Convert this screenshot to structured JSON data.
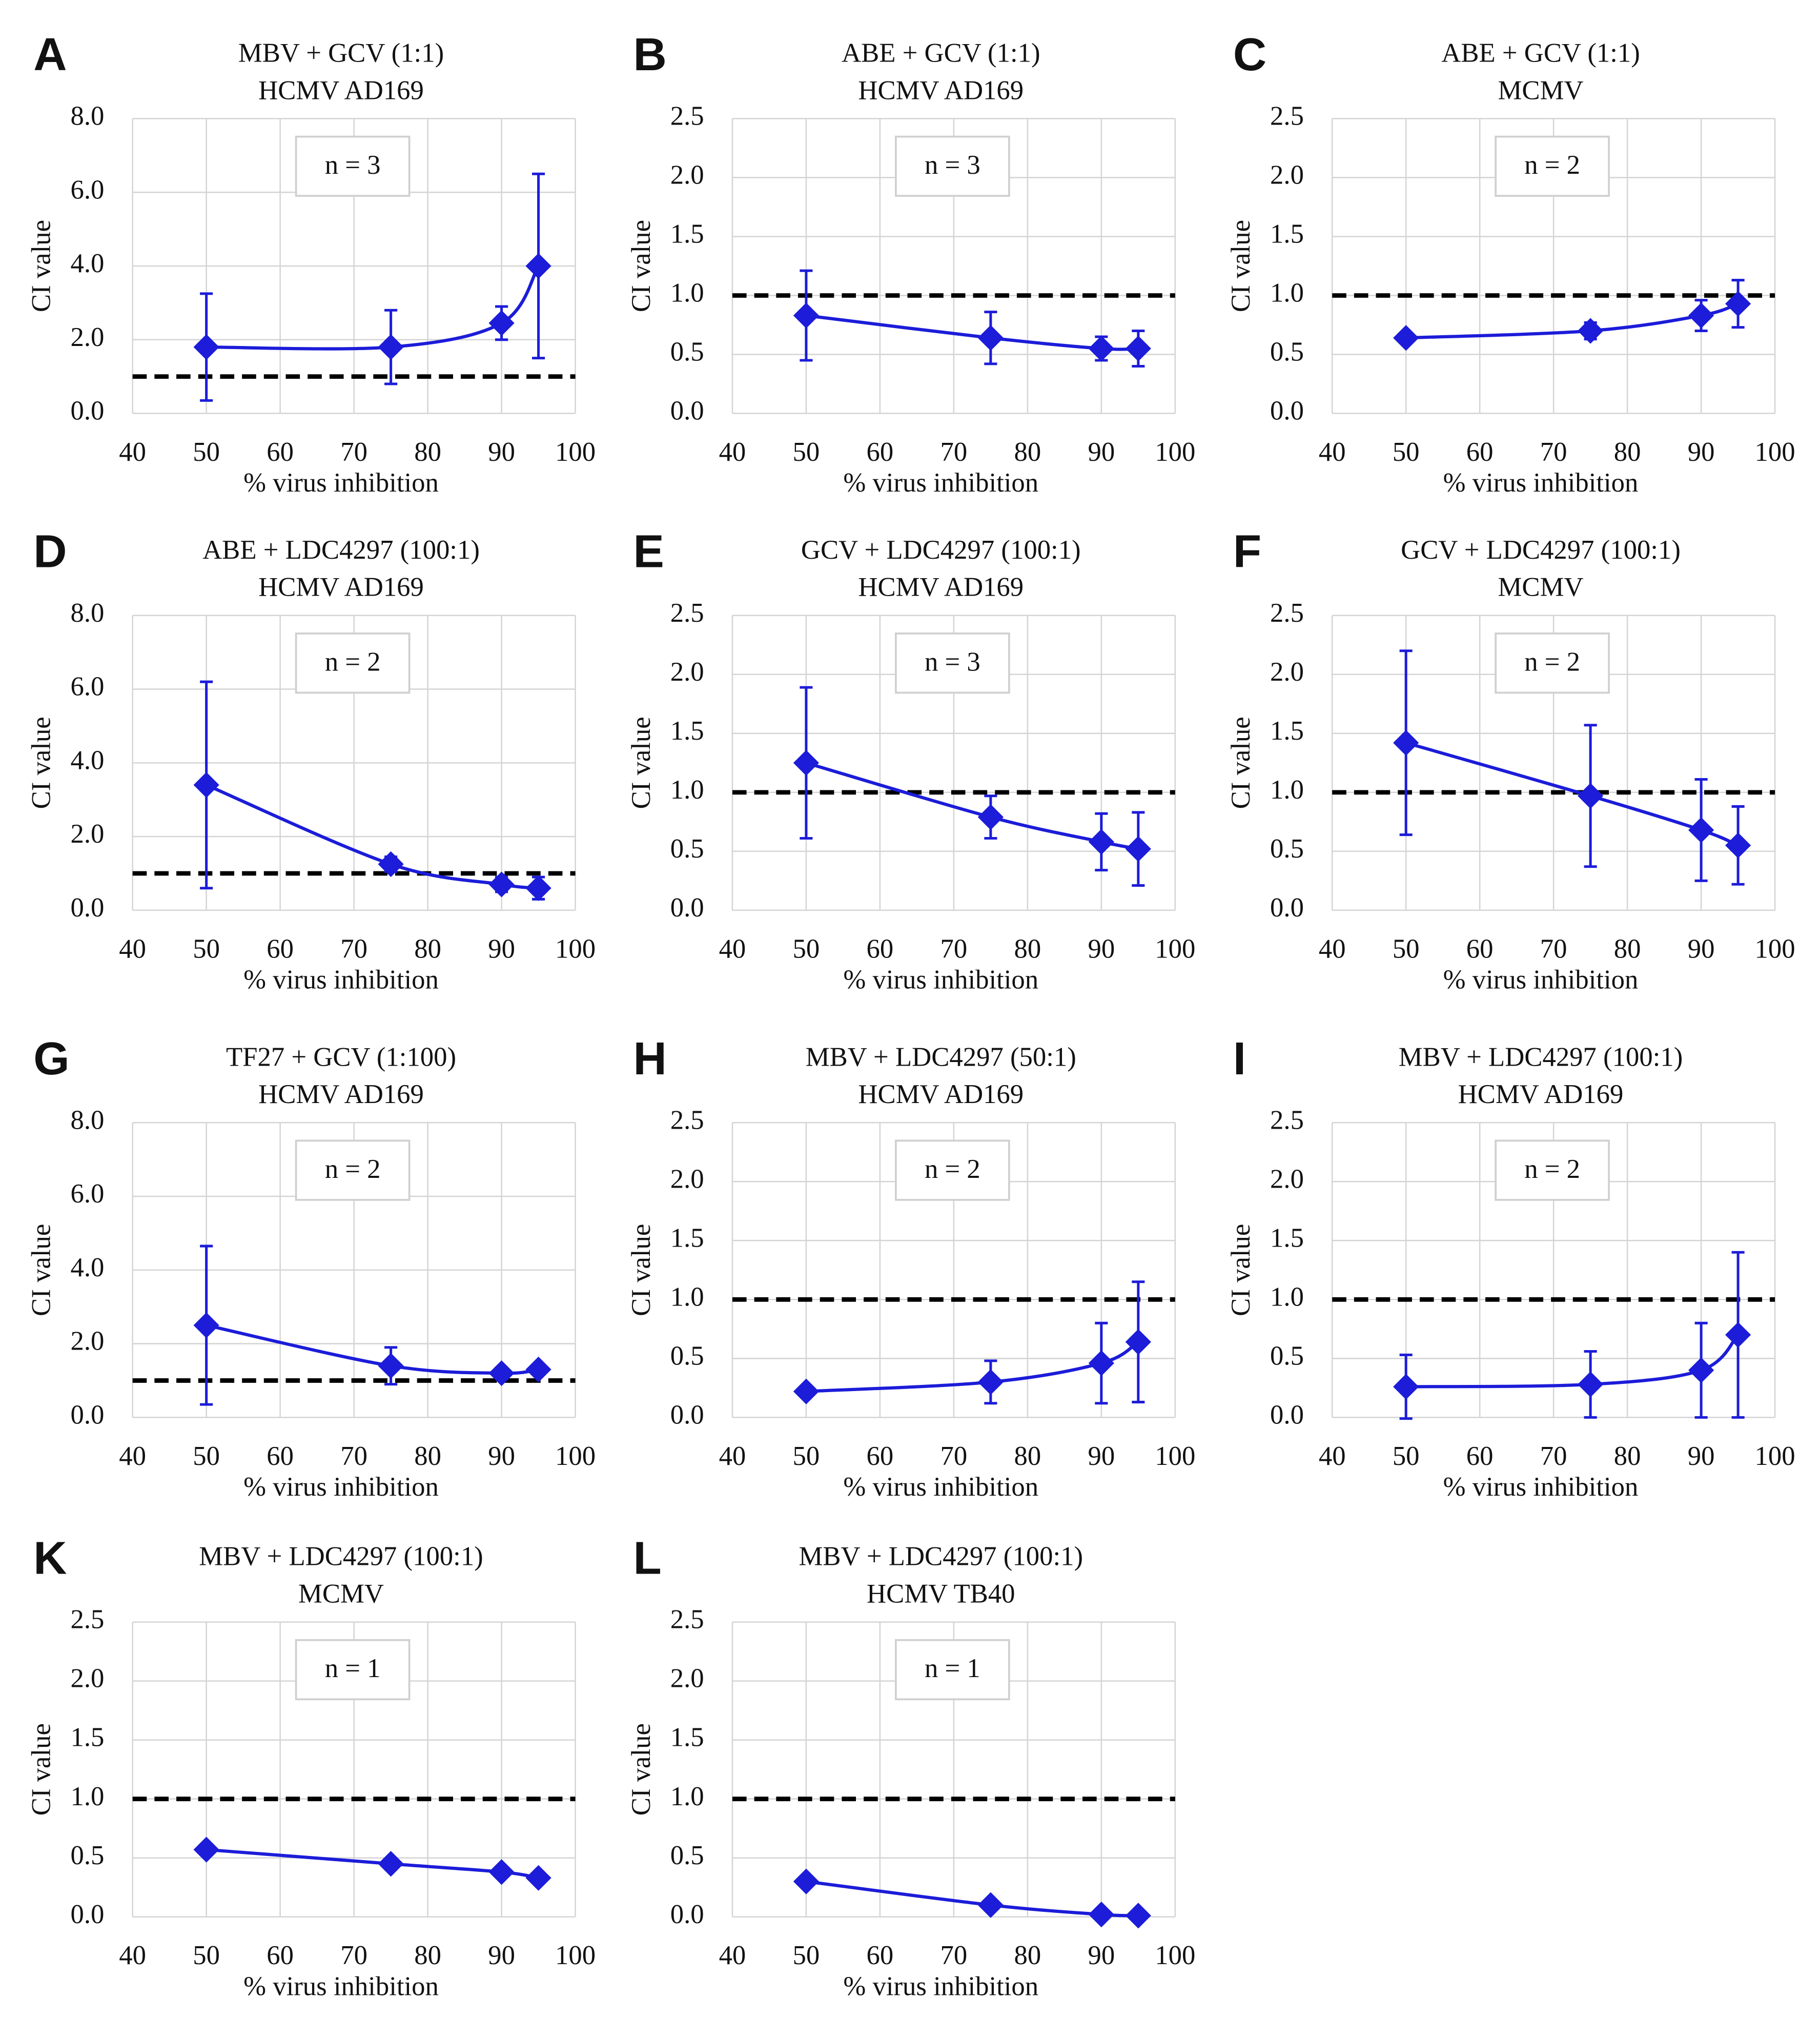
{
  "chart_data": [
    {
      "type": "line",
      "panel": "A",
      "title": "MBV + GCV (1:1)",
      "subtitle": "HCMV AD169",
      "annotation": "n = 3",
      "xlabel": "% virus inhibition",
      "ylabel": "CI value",
      "color": "#1c1cd9",
      "x": [
        50,
        75,
        90,
        95
      ],
      "values": [
        1.8,
        1.8,
        2.45,
        4.0
      ],
      "errors": [
        1.45,
        1.0,
        0.45,
        2.5
      ],
      "reference_line": 1,
      "xlim": [
        40,
        100
      ],
      "xticks": [
        40,
        50,
        60,
        70,
        80,
        90,
        100
      ],
      "ylim": [
        0,
        8
      ],
      "yticks": [
        {
          "value": 0,
          "label": "0.0"
        },
        {
          "value": 2,
          "label": "2.0"
        },
        {
          "value": 4,
          "label": "4.0"
        },
        {
          "value": 6,
          "label": "6.0"
        },
        {
          "value": 8,
          "label": "8.0"
        }
      ],
      "grid": true
    },
    {
      "type": "line",
      "panel": "B",
      "title": "ABE + GCV (1:1)",
      "subtitle": "HCMV AD169",
      "annotation": "n = 3",
      "xlabel": "% virus inhibition",
      "ylabel": "CI value",
      "color": "#1c1cd9",
      "x": [
        50,
        75,
        90,
        95
      ],
      "values": [
        0.83,
        0.64,
        0.55,
        0.55
      ],
      "errors": [
        0.38,
        0.22,
        0.1,
        0.15
      ],
      "reference_line": 1,
      "xlim": [
        40,
        100
      ],
      "xticks": [
        40,
        50,
        60,
        70,
        80,
        90,
        100
      ],
      "ylim": [
        0,
        2.5
      ],
      "yticks": [
        {
          "value": 0,
          "label": "0.0"
        },
        0.5,
        {
          "value": 1,
          "label": "1.0"
        },
        1.5,
        {
          "value": 2,
          "label": "2.0"
        },
        2.5
      ],
      "grid": true
    },
    {
      "type": "line",
      "panel": "C",
      "title": "ABE + GCV (1:1)",
      "subtitle": "MCMV",
      "annotation": "n = 2",
      "xlabel": "% virus inhibition",
      "ylabel": "CI value",
      "color": "#1c1cd9",
      "x": [
        50,
        75,
        90,
        95
      ],
      "values": [
        0.64,
        0.7,
        0.83,
        0.93
      ],
      "errors": [
        0.03,
        0.07,
        0.13,
        0.2
      ],
      "reference_line": 1,
      "xlim": [
        40,
        100
      ],
      "xticks": [
        40,
        50,
        60,
        70,
        80,
        90,
        100
      ],
      "ylim": [
        0,
        2.5
      ],
      "yticks": [
        {
          "value": 0,
          "label": "0.0"
        },
        0.5,
        {
          "value": 1,
          "label": "1.0"
        },
        1.5,
        {
          "value": 2,
          "label": "2.0"
        },
        2.5
      ],
      "grid": true
    },
    {
      "type": "line",
      "panel": "D",
      "title": "ABE + LDC4297 (100:1)",
      "subtitle": "HCMV AD169",
      "annotation": "n = 2",
      "xlabel": "% virus inhibition",
      "ylabel": "CI value",
      "color": "#1c1cd9",
      "x": [
        50,
        75,
        90,
        95
      ],
      "values": [
        3.4,
        1.25,
        0.7,
        0.6
      ],
      "errors": [
        2.8,
        0.2,
        0.2,
        0.3
      ],
      "reference_line": 1,
      "xlim": [
        40,
        100
      ],
      "xticks": [
        40,
        50,
        60,
        70,
        80,
        90,
        100
      ],
      "ylim": [
        0,
        8
      ],
      "yticks": [
        {
          "value": 0,
          "label": "0.0"
        },
        {
          "value": 2,
          "label": "2.0"
        },
        {
          "value": 4,
          "label": "4.0"
        },
        {
          "value": 6,
          "label": "6.0"
        },
        {
          "value": 8,
          "label": "8.0"
        }
      ],
      "grid": true
    },
    {
      "type": "line",
      "panel": "E",
      "title": "GCV + LDC4297 (100:1)",
      "subtitle": "HCMV AD169",
      "annotation": "n = 3",
      "xlabel": "% virus inhibition",
      "ylabel": "CI value",
      "color": "#1c1cd9",
      "x": [
        50,
        75,
        90,
        95
      ],
      "values": [
        1.25,
        0.79,
        0.58,
        0.52
      ],
      "errors": [
        0.64,
        0.18,
        0.24,
        0.31
      ],
      "reference_line": 1,
      "xlim": [
        40,
        100
      ],
      "xticks": [
        40,
        50,
        60,
        70,
        80,
        90,
        100
      ],
      "ylim": [
        0,
        2.5
      ],
      "yticks": [
        {
          "value": 0,
          "label": "0.0"
        },
        0.5,
        {
          "value": 1,
          "label": "1.0"
        },
        1.5,
        {
          "value": 2,
          "label": "2.0"
        },
        2.5
      ],
      "grid": true
    },
    {
      "type": "line",
      "panel": "F",
      "title": "GCV + LDC4297 (100:1)",
      "subtitle": "MCMV",
      "annotation": "n = 2",
      "xlabel": "% virus inhibition",
      "ylabel": "CI value",
      "color": "#1c1cd9",
      "x": [
        50,
        75,
        90,
        95
      ],
      "values": [
        1.42,
        0.97,
        0.68,
        0.55
      ],
      "errors": [
        0.78,
        0.6,
        0.43,
        0.33
      ],
      "reference_line": 1,
      "xlim": [
        40,
        100
      ],
      "xticks": [
        40,
        50,
        60,
        70,
        80,
        90,
        100
      ],
      "ylim": [
        0,
        2.5
      ],
      "yticks": [
        {
          "value": 0,
          "label": "0.0"
        },
        0.5,
        {
          "value": 1,
          "label": "1.0"
        },
        1.5,
        {
          "value": 2,
          "label": "2.0"
        },
        2.5
      ],
      "grid": true
    },
    {
      "type": "line",
      "panel": "G",
      "title": "TF27 + GCV (1:100)",
      "subtitle": "HCMV AD169",
      "annotation": "n = 2",
      "xlabel": "% virus inhibition",
      "ylabel": "CI value",
      "color": "#1c1cd9",
      "x": [
        50,
        75,
        90,
        95
      ],
      "values": [
        2.5,
        1.4,
        1.2,
        1.3
      ],
      "errors": [
        2.15,
        0.5,
        0.1,
        0.1
      ],
      "reference_line": 1,
      "xlim": [
        40,
        100
      ],
      "xticks": [
        40,
        50,
        60,
        70,
        80,
        90,
        100
      ],
      "ylim": [
        0,
        8
      ],
      "yticks": [
        {
          "value": 0,
          "label": "0.0"
        },
        {
          "value": 2,
          "label": "2.0"
        },
        {
          "value": 4,
          "label": "4.0"
        },
        {
          "value": 6,
          "label": "6.0"
        },
        {
          "value": 8,
          "label": "8.0"
        }
      ],
      "grid": true
    },
    {
      "type": "line",
      "panel": "H",
      "title": "MBV + LDC4297 (50:1)",
      "subtitle": "HCMV AD169",
      "annotation": "n = 2",
      "xlabel": "% virus inhibition",
      "ylabel": "CI value",
      "color": "#1c1cd9",
      "x": [
        50,
        75,
        90,
        95
      ],
      "values": [
        0.22,
        0.3,
        0.46,
        0.64
      ],
      "errors": [
        0.02,
        0.18,
        0.34,
        0.51
      ],
      "reference_line": 1,
      "xlim": [
        40,
        100
      ],
      "xticks": [
        40,
        50,
        60,
        70,
        80,
        90,
        100
      ],
      "ylim": [
        0,
        2.5
      ],
      "yticks": [
        {
          "value": 0,
          "label": "0.0"
        },
        0.5,
        {
          "value": 1,
          "label": "1.0"
        },
        1.5,
        {
          "value": 2,
          "label": "2.0"
        },
        2.5
      ],
      "grid": true
    },
    {
      "type": "line",
      "panel": "I",
      "title": "MBV + LDC4297 (100:1)",
      "subtitle": "HCMV AD169",
      "annotation": "n = 2",
      "xlabel": "% virus inhibition",
      "ylabel": "CI value",
      "color": "#1c1cd9",
      "x": [
        50,
        75,
        90,
        95
      ],
      "values": [
        0.26,
        0.28,
        0.4,
        0.7
      ],
      "errors": [
        0.27,
        0.28,
        0.4,
        0.7
      ],
      "reference_line": 1,
      "xlim": [
        40,
        100
      ],
      "xticks": [
        40,
        50,
        60,
        70,
        80,
        90,
        100
      ],
      "ylim": [
        0,
        2.5
      ],
      "yticks": [
        {
          "value": 0,
          "label": "0.0"
        },
        0.5,
        {
          "value": 1,
          "label": "1.0"
        },
        1.5,
        {
          "value": 2,
          "label": "2.0"
        },
        2.5
      ],
      "grid": true
    },
    {
      "type": "line",
      "panel": "K",
      "title": "MBV + LDC4297 (100:1)",
      "subtitle": "MCMV",
      "annotation": "n = 1",
      "xlabel": "% virus inhibition",
      "ylabel": "CI value",
      "color": "#1c1cd9",
      "x": [
        50,
        75,
        90,
        95
      ],
      "values": [
        0.57,
        0.45,
        0.38,
        0.33
      ],
      "reference_line": 1,
      "xlim": [
        40,
        100
      ],
      "xticks": [
        40,
        50,
        60,
        70,
        80,
        90,
        100
      ],
      "ylim": [
        0,
        2.5
      ],
      "yticks": [
        {
          "value": 0,
          "label": "0.0"
        },
        0.5,
        {
          "value": 1,
          "label": "1.0"
        },
        1.5,
        {
          "value": 2,
          "label": "2.0"
        },
        2.5
      ],
      "grid": true
    },
    {
      "type": "line",
      "panel": "L",
      "title": "MBV + LDC4297 (100:1)",
      "subtitle": "HCMV TB40",
      "annotation": "n = 1",
      "xlabel": "% virus inhibition",
      "ylabel": "CI value",
      "color": "#1c1cd9",
      "x": [
        50,
        75,
        90,
        95
      ],
      "values": [
        0.3,
        0.1,
        0.02,
        0.01
      ],
      "reference_line": 1,
      "xlim": [
        40,
        100
      ],
      "xticks": [
        40,
        50,
        60,
        70,
        80,
        90,
        100
      ],
      "ylim": [
        0,
        2.5
      ],
      "yticks": [
        {
          "value": 0,
          "label": "0.0"
        },
        0.5,
        {
          "value": 1,
          "label": "1.0"
        },
        1.5,
        {
          "value": 2,
          "label": "2.0"
        },
        2.5
      ],
      "grid": true
    }
  ]
}
